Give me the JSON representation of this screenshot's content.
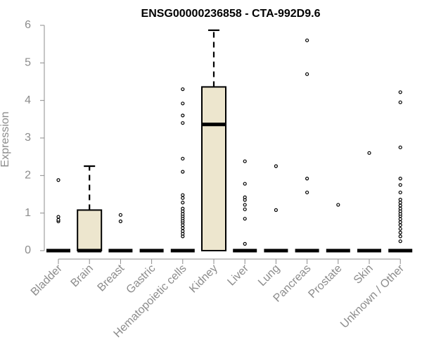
{
  "chart_data": {
    "type": "box",
    "title": "ENSG00000236858 - CTA-992D9.6",
    "xlabel": "",
    "ylabel": "Expression",
    "ylim": [
      0,
      6
    ],
    "yticks": [
      0,
      1,
      2,
      3,
      4,
      5,
      6
    ],
    "grid": false,
    "categories": [
      "Bladder",
      "Brain",
      "Breast",
      "Gastric",
      "Hematopoietic cells",
      "Kidney",
      "Liver",
      "Lung",
      "Pancreas",
      "Prostate",
      "Skin",
      "Unknown / Other"
    ],
    "box_fill": "#ede6ce",
    "box_stroke": "#000000",
    "boxes": [
      {
        "q1": 0,
        "median": 0,
        "q3": 0,
        "whisker_low": 0,
        "whisker_high": 0,
        "outliers": [
          0.78,
          0.82,
          0.9,
          1.88
        ]
      },
      {
        "q1": 0,
        "median": 0,
        "q3": 1.08,
        "whisker_low": 0,
        "whisker_high": 2.25,
        "outliers": []
      },
      {
        "q1": 0,
        "median": 0,
        "q3": 0,
        "whisker_low": 0,
        "whisker_high": 0,
        "outliers": [
          0.78,
          0.95
        ]
      },
      {
        "q1": 0,
        "median": 0,
        "q3": 0,
        "whisker_low": 0,
        "whisker_high": 0,
        "outliers": []
      },
      {
        "q1": 0,
        "median": 0,
        "q3": 0,
        "whisker_low": 0,
        "whisker_high": 0,
        "outliers": [
          0.38,
          0.45,
          0.52,
          0.6,
          0.68,
          0.75,
          0.8,
          0.86,
          0.92,
          0.98,
          1.05,
          1.12,
          1.28,
          1.4,
          1.48,
          2.1,
          2.45,
          3.4,
          3.6,
          3.92,
          4.3
        ]
      },
      {
        "q1": 0,
        "median": 3.36,
        "q3": 4.36,
        "whisker_low": 0,
        "whisker_high": 5.87,
        "outliers": []
      },
      {
        "q1": 0,
        "median": 0,
        "q3": 0,
        "whisker_low": 0,
        "whisker_high": 0,
        "outliers": [
          0.18,
          0.85,
          1.1,
          1.22,
          1.35,
          1.42,
          1.78,
          2.38
        ]
      },
      {
        "q1": 0,
        "median": 0,
        "q3": 0,
        "whisker_low": 0,
        "whisker_high": 0,
        "outliers": [
          1.08,
          2.25
        ]
      },
      {
        "q1": 0,
        "median": 0,
        "q3": 0,
        "whisker_low": 0,
        "whisker_high": 0,
        "outliers": [
          1.55,
          1.92,
          4.7,
          5.6
        ]
      },
      {
        "q1": 0,
        "median": 0,
        "q3": 0,
        "whisker_low": 0,
        "whisker_high": 0,
        "outliers": [
          1.22
        ]
      },
      {
        "q1": 0,
        "median": 0,
        "q3": 0,
        "whisker_low": 0,
        "whisker_high": 0,
        "outliers": [
          2.6
        ]
      },
      {
        "q1": 0,
        "median": 0,
        "q3": 0,
        "whisker_low": 0,
        "whisker_high": 0,
        "outliers": [
          0.25,
          0.38,
          0.48,
          0.58,
          0.68,
          0.76,
          0.84,
          0.92,
          0.98,
          1.05,
          1.12,
          1.2,
          1.28,
          1.36,
          1.55,
          1.75,
          1.92,
          2.75,
          3.95,
          4.22
        ]
      }
    ]
  }
}
